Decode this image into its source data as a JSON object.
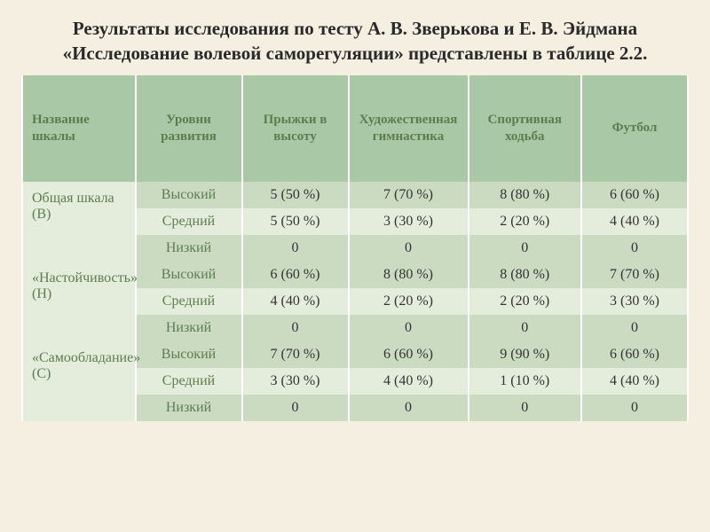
{
  "title": "Результаты исследования по тесту А. В. Зверькова и Е. В. Эйдмана «Исследование волевой саморегуляции» представлены в таблице 2.2.",
  "columns": {
    "scale": "Название шкалы",
    "level": "Уровни развития",
    "jump": "Прыжки в высоту",
    "gym": "Художественная гимнастика",
    "walk": "Спортивная ходьба",
    "football": "Футбол"
  },
  "scales": [
    {
      "name": "Общая шкала (В)"
    },
    {
      "name": "«Настойчивость» (Н)"
    },
    {
      "name": "«Самообладание» (С)"
    }
  ],
  "levels": [
    "Высокий",
    "Средний",
    "Низкий"
  ],
  "data": [
    [
      [
        "5 (50 %)",
        "7 (70 %)",
        "8 (80 %)",
        "6 (60 %)"
      ],
      [
        "5 (50 %)",
        "3 (30 %)",
        "2 (20 %)",
        "4 (40 %)"
      ],
      [
        "0",
        "0",
        "0",
        "0"
      ]
    ],
    [
      [
        "6 (60 %)",
        "8 (80 %)",
        "8 (80 %)",
        "7 (70 %)"
      ],
      [
        "4 (40 %)",
        "2 (20 %)",
        "2 (20 %)",
        "3 (30 %)"
      ],
      [
        "0",
        "0",
        "0",
        "0"
      ]
    ],
    [
      [
        "7 (70 %)",
        "6 (60 %)",
        "9 (90 %)",
        "6 (60 %)"
      ],
      [
        "3 (30 %)",
        "4 (40 %)",
        "1 (10 %)",
        "4 (40 %)"
      ],
      [
        "0",
        "0",
        "0",
        "0"
      ]
    ]
  ],
  "colors": {
    "page_bg": "#f5efe1",
    "header_bg": "#a9c8a6",
    "row_even_bg": "#cbdbc2",
    "row_odd_bg": "#e4ecdb",
    "header_text": "#5d7d4f",
    "cell_border": "#ffffff"
  }
}
